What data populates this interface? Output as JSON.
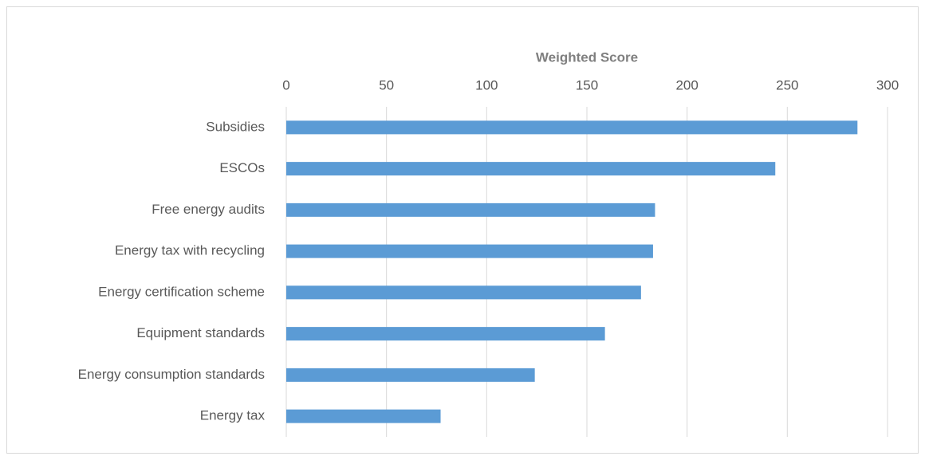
{
  "chart_data": {
    "type": "bar",
    "orientation": "horizontal",
    "x_label": "Weighted Score",
    "categories": [
      "Subsidies",
      "ESCOs",
      "Free energy audits",
      "Energy tax with recycling",
      "Energy certification scheme",
      "Equipment standards",
      "Energy consumption standards",
      "Energy tax"
    ],
    "values": [
      285,
      244,
      184,
      183,
      177,
      159,
      124,
      77
    ],
    "color": "#5b9bd5",
    "xlim": [
      0,
      300
    ],
    "xticks": [
      0,
      50,
      100,
      150,
      200,
      250,
      300
    ],
    "grid": true
  }
}
